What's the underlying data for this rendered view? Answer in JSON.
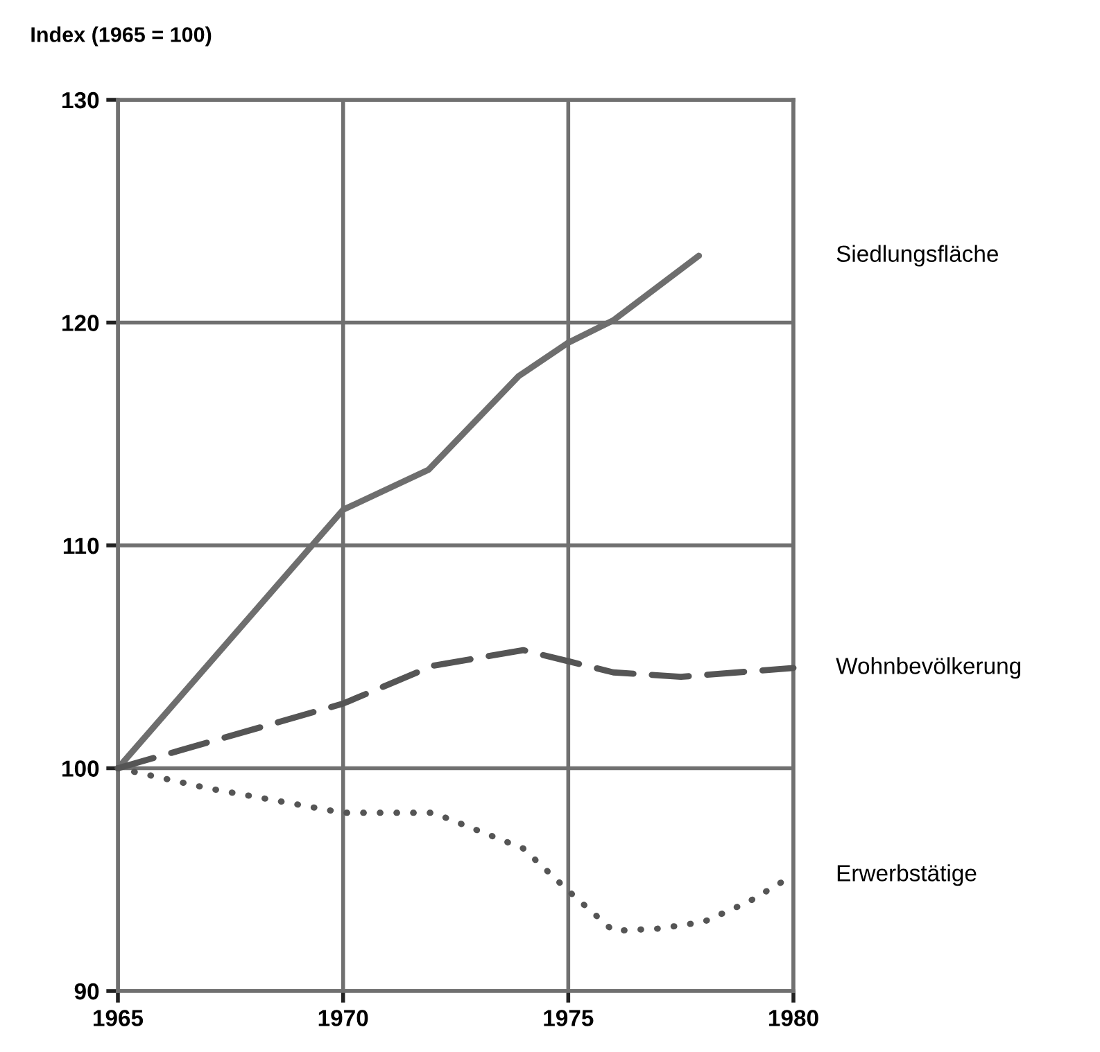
{
  "chart_data": {
    "type": "line",
    "ylabel": "Index (1965 = 100)",
    "xlim": [
      1965,
      1980
    ],
    "ylim": [
      90,
      130
    ],
    "xticks": [
      1965,
      1970,
      1975,
      1980
    ],
    "yticks": [
      90,
      100,
      110,
      120,
      130
    ],
    "grid": true,
    "legend": false,
    "series": [
      {
        "name": "Siedlungsfläche",
        "color": "#6e6e6e",
        "line_style": "solid",
        "x": [
          1965,
          1970,
          1971.9,
          1973.9,
          1975,
          1976,
          1977.9
        ],
        "values": [
          100,
          111.6,
          113.4,
          117.6,
          119.1,
          120.1,
          123.0
        ]
      },
      {
        "name": "Wohnbevölkerung",
        "color": "#555555",
        "line_style": "dashed",
        "x": [
          1965,
          1970,
          1972,
          1974,
          1975,
          1976,
          1977.5,
          1980
        ],
        "values": [
          100,
          102.9,
          104.6,
          105.3,
          104.8,
          104.3,
          104.1,
          104.5
        ]
      },
      {
        "name": "Erwerbstätige",
        "color": "#555555",
        "line_style": "dotted",
        "x": [
          1965,
          1967,
          1970,
          1972,
          1973,
          1974,
          1975,
          1976,
          1977,
          1978,
          1979,
          1980
        ],
        "values": [
          100,
          99.1,
          98.0,
          98.0,
          97.2,
          96.4,
          94.5,
          92.7,
          92.8,
          93.1,
          94.0,
          95.2
        ]
      }
    ]
  }
}
